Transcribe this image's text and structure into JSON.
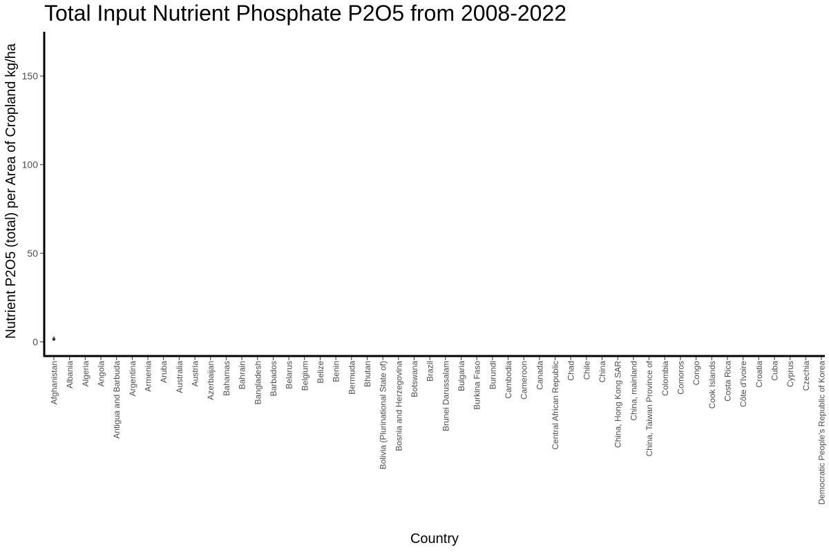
{
  "chart_data": {
    "type": "boxplot",
    "title": "Total Input Nutrient Phosphate P2O5 from 2008-2022",
    "xlabel": "Country",
    "ylabel": "Nutrient P2O5 (total) per Area of Cropland kg/ha",
    "ylim": [
      -8,
      175
    ],
    "yticks": [
      0,
      50,
      100,
      150
    ],
    "grid": false,
    "categories": [
      "Afghanistan",
      "Albania",
      "Algeria",
      "Angola",
      "Antigua and Barbuda",
      "Argentina",
      "Armenia",
      "Aruba",
      "Australia",
      "Austria",
      "Azerbaijan",
      "Bahamas",
      "Bahrain",
      "Bangladesh",
      "Barbados",
      "Belarus",
      "Belgium",
      "Belize",
      "Benin",
      "Bermuda",
      "Bhutan",
      "Bolivia (Plurinational State of)",
      "Bosnia and Herzegovina",
      "Botswana",
      "Brazil",
      "Brunei Darussalam",
      "Bulgaria",
      "Burkina Faso",
      "Burundi",
      "Cambodia",
      "Cameroon",
      "Canada",
      "Central African Republic",
      "Chad",
      "Chile",
      "China",
      "China, Hong Kong SAR",
      "China, mainland",
      "China, Taiwan Province of",
      "Colombia",
      "Comoros",
      "Congo",
      "Cook Islands",
      "Costa Rica",
      "Côte d'Ivoire",
      "Croatia",
      "Cuba",
      "Cyprus",
      "Czechia",
      "Democratic People's Republic of Korea"
    ],
    "boxes": [
      {
        "category": "Afghanistan",
        "min": 0.5,
        "q1": 1.0,
        "median": 1.5,
        "q3": 2.2,
        "max": 3.2
      }
    ]
  }
}
